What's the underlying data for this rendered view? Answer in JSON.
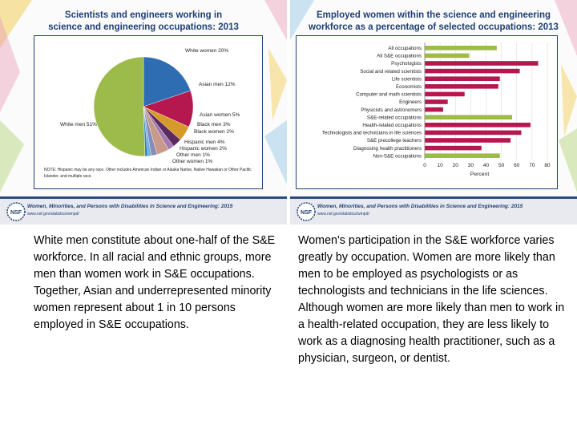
{
  "left_panel": {
    "title_line1": "Scientists and engineers working in",
    "title_line2": "science and engineering occupations: 2013",
    "note": "NOTE: Hispanic may be any race. Other includes American Indian or Alaska Native, Native Hawaiian or Other Pacific Islander, and multiple race.",
    "footer_title": "Women, Minorities, and Persons with Disabilities in Science and Engineering: 2015",
    "footer_url": "www.nsf.gov/statistics/wmpd/",
    "logo_text": "NSF"
  },
  "right_panel": {
    "title_line1": "Employed women within the science and engineering",
    "title_line2": "workforce as a percentage of selected occupations: 2013",
    "footer_title": "Women, Minorities, and Persons with Disabilities in Science and Engineering: 2015",
    "footer_url": "www.nsf.gov/statistics/wmpd/",
    "logo_text": "NSF"
  },
  "captions": {
    "left": "White men constitute about one-half of the S&E workforce. In all racial and ethnic groups, more men than women work in S&E occupations. Together, Asian and underrepresented minority women represent about 1 in 10 persons employed in S&E occupations.",
    "right": "Women's participation in the S&E workforce varies greatly by occupation. Women are more likely than men to be employed as psychologists or as technologists and technicians in the life sciences. Although women are more likely than men to work in a health-related occupation, they are less likely to work as a diagnosing health practitioner, such as a physician, surgeon, or dentist."
  },
  "chart_data": [
    {
      "type": "pie",
      "title": "Scientists and engineers working in science and engineering occupations: 2013",
      "slices": [
        {
          "label": "White women 20%",
          "value": 20,
          "color": "#2f6db3"
        },
        {
          "label": "Asian men 12%",
          "value": 12,
          "color": "#b5174f"
        },
        {
          "label": "Asian women 5%",
          "value": 5,
          "color": "#d69a2a"
        },
        {
          "label": "Black men 3%",
          "value": 3,
          "color": "#5b2a5e"
        },
        {
          "label": "Black women 2%",
          "value": 2,
          "color": "#a07ab0"
        },
        {
          "label": "Hispanic men 4%",
          "value": 4,
          "color": "#c99a8a"
        },
        {
          "label": "Hispanic women 2%",
          "value": 2,
          "color": "#8a8ab8"
        },
        {
          "label": "Other men 1%",
          "value": 1,
          "color": "#6aaed6"
        },
        {
          "label": "Other women 1%",
          "value": 1,
          "color": "#3a86c8"
        },
        {
          "label": "White men 51%",
          "value": 51,
          "color": "#9dbb4a"
        }
      ]
    },
    {
      "type": "bar",
      "orientation": "horizontal",
      "title": "Employed women within the science and engineering workforce as a percentage of selected occupations: 2013",
      "xlabel": "Percent",
      "xlim": [
        0,
        80
      ],
      "xticks": [
        0,
        10,
        20,
        30,
        40,
        50,
        60,
        70,
        80
      ],
      "categories": [
        "All occupations",
        "All S&E occupations",
        "Psychologists",
        "Social and related scientists",
        "Life scientists",
        "Economists",
        "Computer and math scientists",
        "Engineers",
        "Physicists and astronomers",
        "S&E-related occupations",
        "Health-related occupations",
        "Technologists and technicians in life sciences",
        "S&E precollege teachers",
        "Diagnosing health practitioners",
        "Non-S&E occupations"
      ],
      "values": [
        47,
        29,
        74,
        62,
        49,
        48,
        26,
        15,
        12,
        57,
        69,
        63,
        56,
        37,
        49
      ],
      "colors": [
        "#9dbb4a",
        "#9dbb4a",
        "#b5174f",
        "#b5174f",
        "#b5174f",
        "#b5174f",
        "#b5174f",
        "#b5174f",
        "#b5174f",
        "#9dbb4a",
        "#b5174f",
        "#b5174f",
        "#b5174f",
        "#b5174f",
        "#9dbb4a"
      ]
    }
  ]
}
